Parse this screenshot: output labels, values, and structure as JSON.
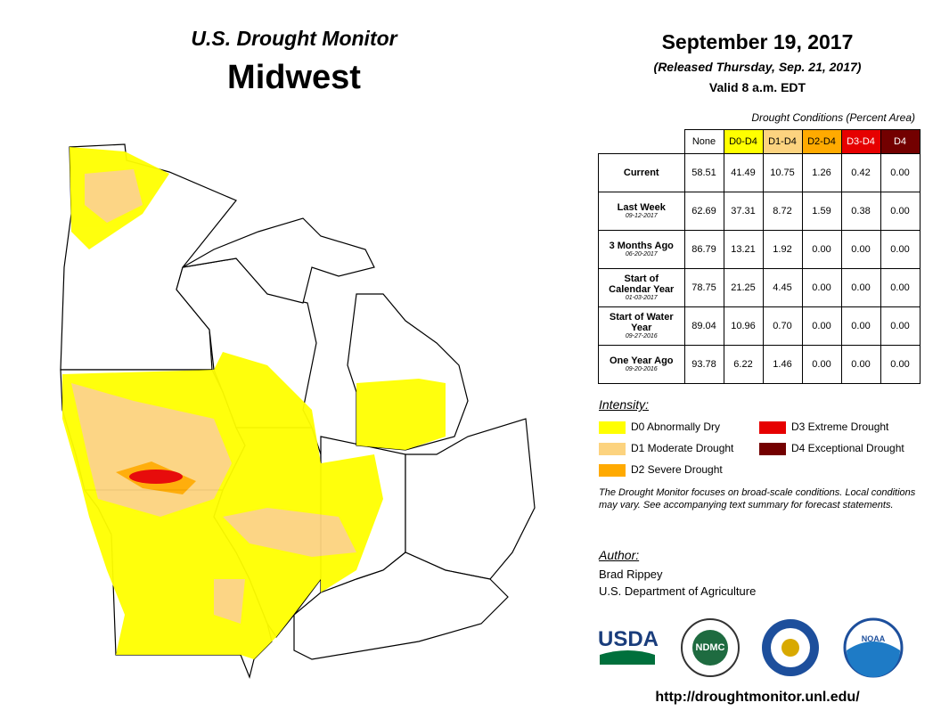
{
  "header": {
    "title": "U.S. Drought Monitor",
    "region": "Midwest",
    "date": "September 19, 2017",
    "released": "(Released Thursday, Sep. 21, 2017)",
    "valid": "Valid 8 a.m. EDT"
  },
  "table": {
    "caption": "Drought Conditions (Percent Area)",
    "columns": [
      {
        "label": "None",
        "color": "#ffffff",
        "text": "#000000"
      },
      {
        "label": "D0-D4",
        "color": "#ffff00",
        "text": "#000000"
      },
      {
        "label": "D1-D4",
        "color": "#fcd37f",
        "text": "#000000"
      },
      {
        "label": "D2-D4",
        "color": "#ffaa00",
        "text": "#000000"
      },
      {
        "label": "D3-D4",
        "color": "#e60000",
        "text": "#ffffff"
      },
      {
        "label": "D4",
        "color": "#730000",
        "text": "#ffffff"
      }
    ],
    "rows": [
      {
        "label": "Current",
        "values": [
          "58.51",
          "41.49",
          "10.75",
          "1.26",
          "0.42",
          "0.00"
        ]
      },
      {
        "label": "Last Week",
        "date": "09-12-2017",
        "values": [
          "62.69",
          "37.31",
          "8.72",
          "1.59",
          "0.38",
          "0.00"
        ]
      },
      {
        "label": "3 Months Ago",
        "date": "06-20-2017",
        "values": [
          "86.79",
          "13.21",
          "1.92",
          "0.00",
          "0.00",
          "0.00"
        ]
      },
      {
        "label": "Start of Calendar Year",
        "date": "01-03-2017",
        "values": [
          "78.75",
          "21.25",
          "4.45",
          "0.00",
          "0.00",
          "0.00"
        ]
      },
      {
        "label": "Start of Water Year",
        "date": "09-27-2016",
        "values": [
          "89.04",
          "10.96",
          "0.70",
          "0.00",
          "0.00",
          "0.00"
        ]
      },
      {
        "label": "One Year Ago",
        "date": "09-20-2016",
        "values": [
          "93.78",
          "6.22",
          "1.46",
          "0.00",
          "0.00",
          "0.00"
        ]
      }
    ]
  },
  "legend": {
    "title": "Intensity:",
    "items": [
      {
        "label": "D0 Abnormally Dry",
        "color": "#ffff00"
      },
      {
        "label": "D1 Moderate Drought",
        "color": "#fcd37f"
      },
      {
        "label": "D2 Severe Drought",
        "color": "#ffaa00"
      },
      {
        "label": "D3 Extreme Drought",
        "color": "#e60000"
      },
      {
        "label": "D4 Exceptional Drought",
        "color": "#730000"
      }
    ]
  },
  "note": "The Drought Monitor focuses on broad-scale conditions. Local conditions may vary. See accompanying text summary for forecast statements.",
  "author": {
    "heading": "Author:",
    "name": "Brad Rippey",
    "org": "U.S. Department of Agriculture"
  },
  "logos": [
    "USDA",
    "NDMC",
    "NOAA"
  ],
  "url": "http://droughtmonitor.unl.edu/"
}
